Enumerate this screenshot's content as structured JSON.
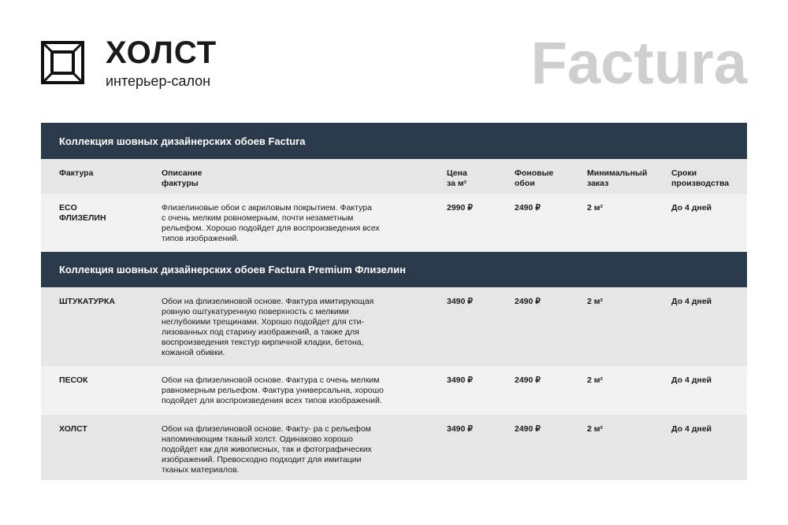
{
  "brand": {
    "name": "ХОЛСТ",
    "tagline": "интерьер-салон",
    "collection_title": "Factura"
  },
  "columns": [
    "Фактура",
    "Описание\nфактуры",
    "Цена\nза м²",
    "Фоновые\nобои",
    "Минимальный\nзаказ",
    "Сроки\nпроизводства"
  ],
  "sections": [
    {
      "title": "Коллекция шовных дизайнерских обоев Factura",
      "rows": [
        {
          "name": "ECO\nФЛИЗЕЛИН",
          "desc": "Флизелиновые обои с акриловым покрытием. Фактура\nс очень мелким ровномерным, почти незаметным\nрельефом. Хорошо подойдет для воспроизведения всех\nтипов изображений.",
          "price": "2990 ₽",
          "bg_price": "2490 ₽",
          "min": "2 м²",
          "term": "До 4 дней"
        }
      ]
    },
    {
      "title": "Коллекция шовных дизайнерских обоев Factura Premium Флизелин",
      "rows": [
        {
          "name": "ШТУКАТУРКА",
          "desc": "Обои на флизелиновой основе. Фактура имитирующая\nровную оштукатуренную поверхность с мелкими\nнеглубокими трещинами. Хорошо подойдет для сти-\nлизованных под старину изображений, а также для\nвоспроизведения текстур кирпичной кладки, бетона,\nкожаной обивки.",
          "price": "3490 ₽",
          "bg_price": "2490 ₽",
          "min": "2 м²",
          "term": "До 4 дней"
        },
        {
          "name": "ПЕСОК",
          "desc": "Обои на флизелиновой основе. Фактура с очень мелким\nравномерным рельефом. Фактура универсальна, хорошо\nподойдет для воспроизведения всех типов изображений.",
          "price": "3490 ₽",
          "bg_price": "2490 ₽",
          "min": "2 м²",
          "term": "До 4 дней"
        },
        {
          "name": "ХОЛСТ",
          "desc": "Обои на флизелиновой основе. Факту- ра с рельефом\nнапоминающим тканый холст. Одинаково хорошо\nподойдет как для живописных, так и фотографических\nизображений. Превосходно подходит для имитации\nтканых материалов.",
          "price": "3490 ₽",
          "bg_price": "2490 ₽",
          "min": "2 м²",
          "term": "До 4 дней"
        }
      ]
    }
  ],
  "colors": {
    "header": "#2b3a4a",
    "row_light": "#f2f2f2",
    "row_dark": "#e6e6e6",
    "title_gray": "#cfcfcf"
  }
}
